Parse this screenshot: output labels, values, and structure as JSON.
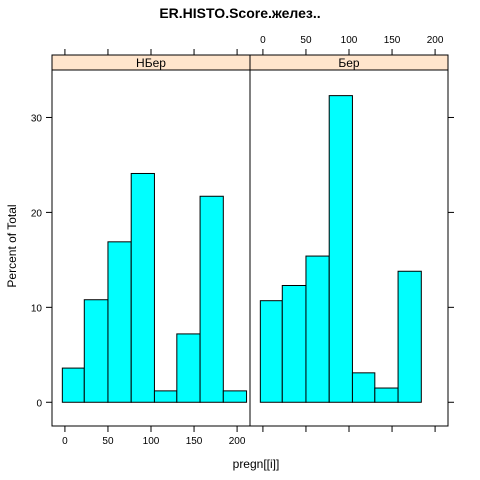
{
  "chart_data": {
    "type": "bar",
    "title": "ER.HISTO.Score.желез..",
    "xlabel": "pregn[[i]]",
    "ylabel": "Percent of Total",
    "xlim": [
      -15,
      215
    ],
    "ylim": [
      -2.5,
      35
    ],
    "xticks": [
      "0",
      "50",
      "100",
      "150",
      "200"
    ],
    "yticks": [
      "0",
      "10",
      "20",
      "30"
    ],
    "bar_color": "#00FFFF",
    "strip_color": "#FFE5CC",
    "panels": [
      {
        "strip": "НБер",
        "bins": [
          {
            "x0": -3,
            "x1": 22.5,
            "value": 3.6
          },
          {
            "x0": 22.5,
            "x1": 50,
            "value": 10.8
          },
          {
            "x0": 50,
            "x1": 77,
            "value": 16.9
          },
          {
            "x0": 77,
            "x1": 104,
            "value": 24.1
          },
          {
            "x0": 104,
            "x1": 130,
            "value": 1.2
          },
          {
            "x0": 130,
            "x1": 157,
            "value": 7.2
          },
          {
            "x0": 157,
            "x1": 184,
            "value": 21.7
          },
          {
            "x0": 184,
            "x1": 211,
            "value": 1.2
          }
        ]
      },
      {
        "strip": "Бер",
        "bins": [
          {
            "x0": -3,
            "x1": 22.5,
            "value": 10.7
          },
          {
            "x0": 22.5,
            "x1": 50,
            "value": 12.3
          },
          {
            "x0": 50,
            "x1": 77,
            "value": 15.4
          },
          {
            "x0": 77,
            "x1": 104,
            "value": 32.3
          },
          {
            "x0": 104,
            "x1": 130,
            "value": 3.1
          },
          {
            "x0": 130,
            "x1": 157,
            "value": 1.5
          },
          {
            "x0": 157,
            "x1": 184,
            "value": 13.8
          }
        ]
      }
    ]
  }
}
